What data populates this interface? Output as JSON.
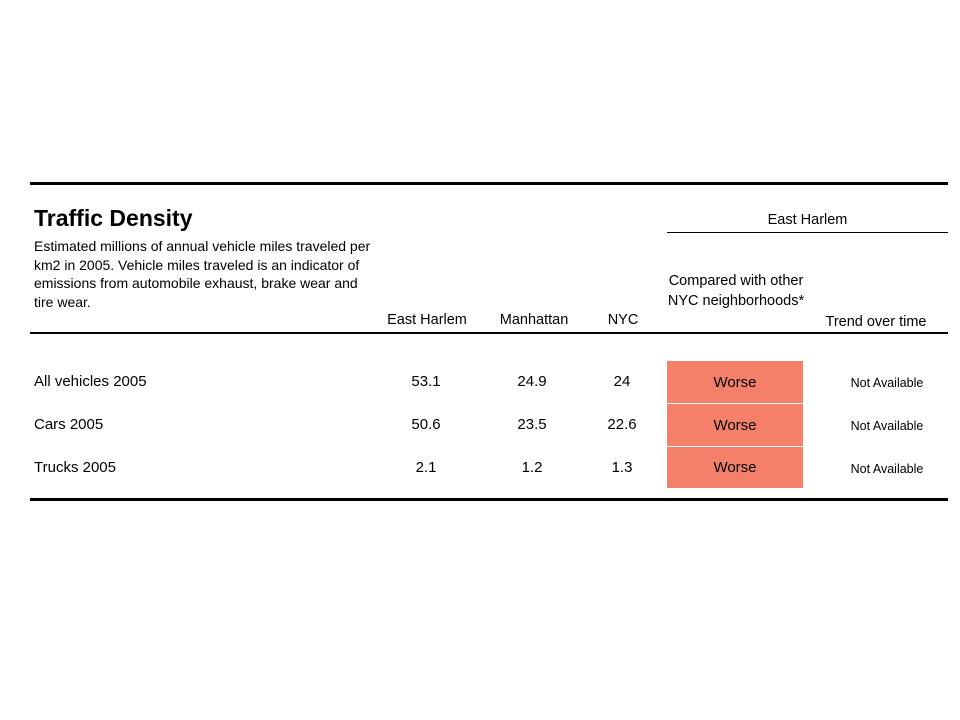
{
  "title": "Traffic Density",
  "description": "Estimated millions of annual vehicle miles traveled per km2 in 2005. Vehicle miles traveled is an indicator of emissions from automobile exhaust, brake wear and tire wear.",
  "group_header": "East Harlem",
  "columns": {
    "east_harlem": "East Harlem",
    "manhattan": "Manhattan",
    "nyc": "NYC",
    "compared": "Compared with other NYC neighborhoods*",
    "trend": "Trend over time"
  },
  "rows": [
    {
      "label": "All vehicles 2005",
      "east_harlem": "53.1",
      "manhattan": "24.9",
      "nyc": "24",
      "compared": "Worse",
      "trend": "Not Available"
    },
    {
      "label": "Cars 2005",
      "east_harlem": "50.6",
      "manhattan": "23.5",
      "nyc": "22.6",
      "compared": "Worse",
      "trend": "Not Available"
    },
    {
      "label": "Trucks 2005",
      "east_harlem": "2.1",
      "manhattan": "1.2",
      "nyc": "1.3",
      "compared": "Worse",
      "trend": "Not Available"
    }
  ],
  "colors": {
    "worse": "#f4806a"
  }
}
